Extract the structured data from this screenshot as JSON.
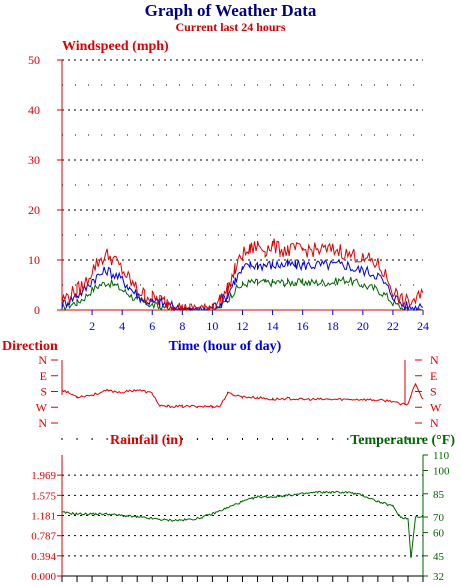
{
  "page": {
    "title": "Graph of Weather Data",
    "subtitle": "Current last 24 hours"
  },
  "colors": {
    "title": "#000080",
    "subtitle": "#cc0000",
    "red": "#e00000",
    "blue": "#0000e0",
    "green": "#006600",
    "axis": "#000000"
  },
  "chart_data": [
    {
      "type": "line",
      "title": "Windspeed (mph)",
      "xlabel": "Time (hour of day)",
      "xlim": [
        0,
        24
      ],
      "ylim": [
        0,
        50
      ],
      "x_ticks": [
        2,
        4,
        6,
        8,
        10,
        12,
        14,
        16,
        18,
        20,
        22,
        24
      ],
      "y_ticks": [
        0,
        10,
        20,
        30,
        40,
        50
      ],
      "grid": true,
      "x": [
        0,
        0.5,
        1,
        1.5,
        2,
        2.5,
        3,
        3.5,
        4,
        4.5,
        5,
        5.5,
        6,
        6.5,
        7,
        7.5,
        8,
        8.5,
        9,
        9.5,
        10,
        10.5,
        11,
        11.5,
        12,
        12.5,
        13,
        13.5,
        14,
        14.5,
        15,
        15.5,
        16,
        16.5,
        17,
        17.5,
        18,
        18.5,
        19,
        19.5,
        20,
        20.5,
        21,
        21.5,
        22,
        22.5,
        23,
        23.5,
        24
      ],
      "series": [
        {
          "color": "red",
          "values": [
            2,
            3,
            4,
            5,
            8,
            10,
            11,
            10,
            8,
            6,
            4,
            3,
            2.5,
            2,
            1.5,
            1,
            0.5,
            0.5,
            0.5,
            0.5,
            1,
            2,
            4,
            8,
            11,
            12,
            13,
            12,
            13,
            12,
            12,
            12,
            12,
            12,
            12,
            12,
            12,
            12,
            11,
            11,
            10,
            10,
            9,
            7,
            4,
            2,
            1.5,
            2,
            3
          ]
        },
        {
          "color": "blue",
          "values": [
            1,
            2,
            3,
            4,
            6,
            7,
            8,
            7,
            6,
            4.5,
            3,
            2,
            1.5,
            1.5,
            1,
            0.5,
            0.5,
            0,
            0,
            0,
            0.5,
            1.5,
            3,
            6,
            8,
            9,
            9,
            9,
            9,
            9,
            9,
            9,
            9,
            9,
            9,
            9,
            9,
            9,
            9,
            8,
            8,
            7.5,
            7,
            5,
            3,
            1.5,
            0.5,
            0.5,
            1.5
          ]
        },
        {
          "color": "green",
          "values": [
            0.5,
            1,
            1.5,
            2.5,
            4,
            5,
            5.5,
            5,
            4,
            3,
            2,
            1.5,
            1,
            0.5,
            0.5,
            0,
            0,
            0,
            0,
            0,
            0,
            0.5,
            2,
            4,
            5,
            5.5,
            5.5,
            5.5,
            5.5,
            5.5,
            5.5,
            5.5,
            5.5,
            5.5,
            5.5,
            5.5,
            5.5,
            6,
            6,
            5.5,
            5,
            4.5,
            4,
            3,
            1.5,
            0.5,
            0,
            0,
            0
          ]
        }
      ]
    },
    {
      "type": "line",
      "title": "Direction",
      "xlim": [
        0,
        24
      ],
      "y_ticks": [
        "N",
        "W",
        "S",
        "E",
        "N"
      ],
      "y_ticks_right": [
        "N",
        "W",
        "S",
        "E",
        "N"
      ],
      "x": [
        0,
        1,
        2,
        3,
        4,
        5,
        6,
        6.5,
        7,
        8,
        9,
        10,
        10.5,
        11,
        12,
        13,
        14,
        15,
        16,
        17,
        18,
        19,
        20,
        21,
        22,
        22.5,
        23,
        23.5,
        24
      ],
      "series": [
        {
          "color": "red",
          "values": [
            190,
            150,
            160,
            185,
            175,
            190,
            170,
            95,
            95,
            95,
            95,
            95,
            95,
            170,
            150,
            145,
            135,
            140,
            135,
            135,
            135,
            135,
            135,
            130,
            125,
            105,
            110,
            230,
            130
          ]
        }
      ]
    },
    {
      "type": "line",
      "title": "Rainfall (in)",
      "title_right": "Temperature (°F)",
      "xlim": [
        0,
        24
      ],
      "ylim": [
        0,
        2.362
      ],
      "y_ticks": [
        "0.000",
        "0.394",
        "0.787",
        "1.181",
        "1.575",
        "1.969"
      ],
      "ylim_right": [
        32,
        110
      ],
      "y_ticks_right": [
        32,
        45,
        60,
        70,
        85,
        100,
        110
      ],
      "series": [
        {
          "name": "Temperature",
          "color": "green",
          "axis": "right",
          "x": [
            0,
            1,
            2,
            3,
            4,
            5,
            6,
            7,
            8,
            9,
            10,
            11,
            12,
            13,
            14,
            15,
            16,
            17,
            18,
            19,
            20,
            21,
            22,
            22.5,
            23,
            23.2,
            23.5,
            24
          ],
          "values": [
            73,
            72,
            72,
            72,
            71,
            70,
            69,
            68,
            68,
            69,
            72,
            76,
            80,
            83,
            83,
            84,
            85,
            86,
            86,
            86,
            84,
            80,
            77,
            70,
            69,
            44,
            70,
            70
          ]
        }
      ]
    }
  ]
}
